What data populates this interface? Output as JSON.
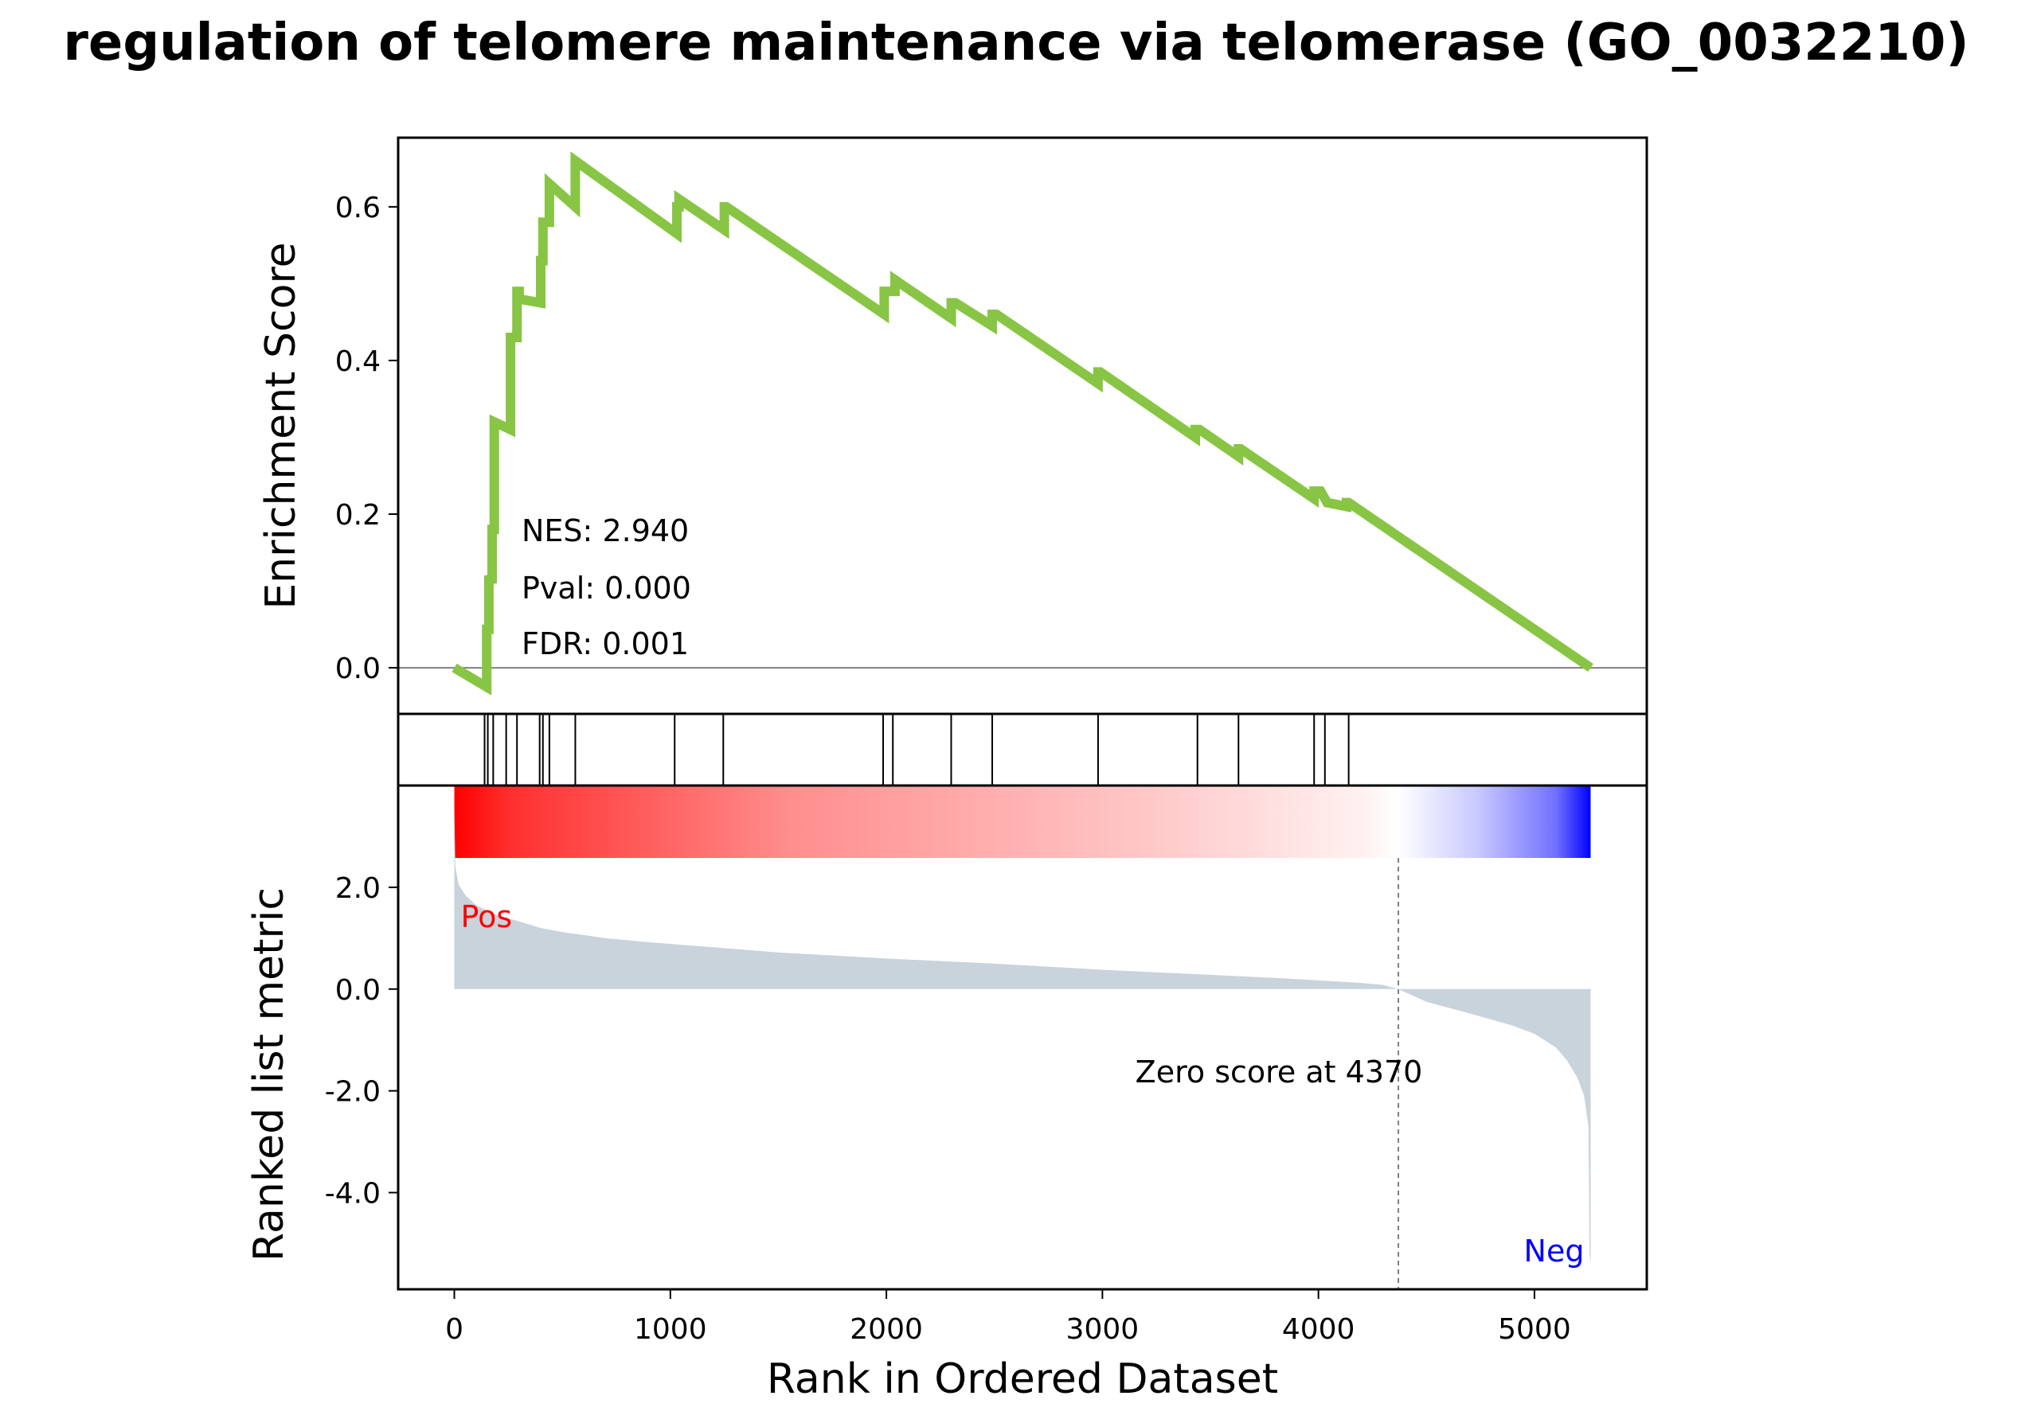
{
  "chart_data": {
    "type": "line",
    "title": "regulation of telomere maintenance via telomerase (GO_0032210)",
    "xlabel": "Rank in Ordered Dataset",
    "xlim": [
      -260,
      5520
    ],
    "xticks": [
      0,
      1000,
      2000,
      3000,
      4000,
      5000
    ],
    "enrichment": {
      "ylabel": "Enrichment Score",
      "ylim": [
        -0.06,
        0.69
      ],
      "yticks": [
        "0.0",
        "0.2",
        "0.4",
        "0.6"
      ],
      "line_color": "#88c544",
      "x": [
        0,
        150,
        150,
        160,
        160,
        175,
        175,
        185,
        185,
        260,
        260,
        290,
        290,
        300,
        300,
        400,
        400,
        410,
        410,
        440,
        440,
        560,
        560,
        1030,
        1030,
        1040,
        1040,
        1250,
        1250,
        1260,
        1260,
        1990,
        1990,
        2040,
        2040,
        2300,
        2300,
        2320,
        2320,
        2490,
        2490,
        2510,
        2510,
        2980,
        2980,
        2990,
        2990,
        3430,
        3430,
        3450,
        3450,
        3630,
        3630,
        3640,
        3640,
        3980,
        3980,
        4010,
        4010,
        4040,
        4040,
        4130,
        4130,
        4140,
        4140,
        5260
      ],
      "y": [
        0.0,
        -0.025,
        0.05,
        0.05,
        0.12,
        0.11,
        0.18,
        0.18,
        0.32,
        0.31,
        0.43,
        0.43,
        0.49,
        0.49,
        0.48,
        0.475,
        0.53,
        0.53,
        0.58,
        0.58,
        0.63,
        0.6,
        0.66,
        0.565,
        0.6,
        0.6,
        0.61,
        0.57,
        0.6,
        0.6,
        0.6,
        0.46,
        0.49,
        0.49,
        0.505,
        0.455,
        0.475,
        0.475,
        0.475,
        0.445,
        0.46,
        0.46,
        0.46,
        0.37,
        0.385,
        0.385,
        0.385,
        0.3,
        0.31,
        0.31,
        0.31,
        0.275,
        0.285,
        0.285,
        0.285,
        0.22,
        0.23,
        0.23,
        0.23,
        0.215,
        0.215,
        0.21,
        0.215,
        0.215,
        0.215,
        0.0
      ],
      "stats": [
        {
          "label": "NES: 2.940"
        },
        {
          "label": "Pval: 0.000"
        },
        {
          "label": "FDR: 0.001"
        }
      ]
    },
    "hits": [
      140,
      155,
      180,
      240,
      290,
      395,
      410,
      440,
      560,
      1020,
      1245,
      1985,
      2030,
      2300,
      2490,
      2980,
      3440,
      3630,
      3980,
      4030,
      4140
    ],
    "ranked_metric": {
      "ylabel": "Ranked list metric",
      "ylim": [
        -5.9,
        4.0
      ],
      "yticks": [
        {
          "value": 2.0,
          "label": "2.0"
        },
        {
          "value": 0.0,
          "label": "0.0"
        },
        {
          "value": -2.0,
          "label": "-2.0"
        },
        {
          "value": -4.0,
          "label": "-4.0"
        }
      ],
      "fill_color": "#c9d3dc",
      "x": [
        0,
        5,
        20,
        50,
        100,
        150,
        200,
        300,
        400,
        500,
        700,
        900,
        1200,
        1500,
        2000,
        2500,
        3000,
        3500,
        3800,
        4000,
        4200,
        4300,
        4370,
        4500,
        4700,
        4900,
        5000,
        5100,
        5150,
        5200,
        5230,
        5250,
        5255,
        5260
      ],
      "y": [
        3.5,
        2.4,
        2.05,
        1.85,
        1.65,
        1.55,
        1.45,
        1.33,
        1.2,
        1.12,
        1.0,
        0.92,
        0.82,
        0.72,
        0.6,
        0.5,
        0.38,
        0.28,
        0.22,
        0.17,
        0.12,
        0.08,
        0.0,
        -0.25,
        -0.48,
        -0.72,
        -0.88,
        -1.15,
        -1.4,
        -1.75,
        -2.1,
        -2.7,
        -5.2,
        -5.4
      ],
      "zero_score_label": "Zero score at 4370",
      "zero_score_x": 4370,
      "pos_label": "Pos",
      "neg_label": "Neg",
      "pos_color": "#ff0000",
      "neg_color": "#0000ff"
    }
  }
}
